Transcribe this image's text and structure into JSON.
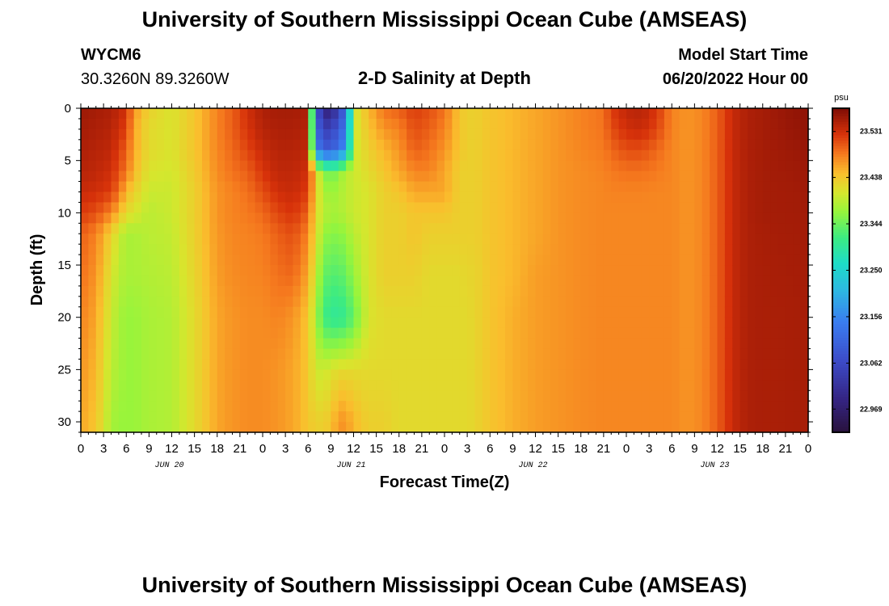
{
  "header": {
    "title": "University of Southern Mississippi Ocean Cube (AMSEAS)",
    "station": "WYCM6",
    "coords": "30.3260N  89.3260W",
    "plot_title": "2-D Salinity at Depth",
    "model_label": "Model Start Time",
    "model_time": "06/20/2022 Hour 00"
  },
  "footer": {
    "title": "University of Southern Mississippi Ocean Cube (AMSEAS)"
  },
  "chart_data": {
    "type": "heatmap",
    "title": "2-D Salinity at Depth",
    "xlabel": "Forecast Time(Z)",
    "ylabel": "Depth (ft)",
    "x_hours": [
      0,
      96
    ],
    "ylim": [
      0,
      31
    ],
    "x_tick_labels": [
      "0",
      "3",
      "6",
      "9",
      "12",
      "15",
      "18",
      "21",
      "0",
      "3",
      "6",
      "9",
      "12",
      "15",
      "18",
      "21",
      "0",
      "3",
      "6",
      "9",
      "12",
      "15",
      "18",
      "21",
      "0",
      "3",
      "6",
      "9",
      "12",
      "15",
      "18",
      "21",
      "0"
    ],
    "date_labels": [
      {
        "label": "JUN 20",
        "hour": 12
      },
      {
        "label": "JUN 21",
        "hour": 36
      },
      {
        "label": "JUN 22",
        "hour": 60
      },
      {
        "label": "JUN 23",
        "hour": 84
      }
    ],
    "y_ticks": [
      0,
      5,
      10,
      15,
      20,
      25,
      30
    ],
    "colorbar": {
      "unit": "psu",
      "min": 22.922,
      "max": 23.578,
      "ticks": [
        "23.531",
        "23.438",
        "23.344",
        "23.250",
        "23.156",
        "23.062",
        "22.969"
      ]
    },
    "depths": [
      0,
      2,
      4,
      6,
      8,
      10,
      12,
      16,
      20,
      25,
      30
    ],
    "times": [
      0,
      2,
      4,
      5,
      6,
      7,
      9,
      12,
      15,
      18,
      20,
      22,
      24,
      26,
      28,
      30,
      31,
      32,
      33,
      34,
      35,
      36,
      38,
      40,
      42,
      44,
      46,
      48,
      50,
      51,
      52,
      54,
      57,
      60,
      63,
      66,
      69,
      70,
      72,
      74,
      76,
      78,
      80,
      82,
      84,
      86,
      88,
      90,
      92,
      94,
      96
    ],
    "values": [
      [
        23.56,
        23.555,
        23.55,
        23.545,
        23.535,
        23.52,
        23.5,
        23.49,
        23.48,
        23.47,
        23.46
      ],
      [
        23.555,
        23.55,
        23.545,
        23.54,
        23.53,
        23.51,
        23.48,
        23.47,
        23.46,
        23.45,
        23.44
      ],
      [
        23.55,
        23.545,
        23.54,
        23.53,
        23.52,
        23.48,
        23.43,
        23.41,
        23.4,
        23.39,
        23.38
      ],
      [
        23.54,
        23.53,
        23.52,
        23.51,
        23.49,
        23.45,
        23.4,
        23.39,
        23.38,
        23.38,
        23.37
      ],
      [
        23.53,
        23.52,
        23.5,
        23.49,
        23.45,
        23.42,
        23.38,
        23.38,
        23.37,
        23.37,
        23.37
      ],
      [
        23.47,
        23.46,
        23.46,
        23.45,
        23.43,
        23.41,
        23.38,
        23.38,
        23.37,
        23.37,
        23.37
      ],
      [
        23.43,
        23.42,
        23.42,
        23.41,
        23.4,
        23.39,
        23.39,
        23.385,
        23.38,
        23.38,
        23.38
      ],
      [
        23.41,
        23.41,
        23.41,
        23.405,
        23.4,
        23.4,
        23.395,
        23.39,
        23.385,
        23.385,
        23.385
      ],
      [
        23.44,
        23.44,
        23.44,
        23.435,
        23.43,
        23.43,
        23.43,
        23.425,
        23.42,
        23.42,
        23.42
      ],
      [
        23.48,
        23.48,
        23.478,
        23.475,
        23.47,
        23.47,
        23.468,
        23.465,
        23.46,
        23.46,
        23.46
      ],
      [
        23.5,
        23.5,
        23.495,
        23.49,
        23.48,
        23.48,
        23.478,
        23.475,
        23.47,
        23.47,
        23.47
      ],
      [
        23.53,
        23.525,
        23.515,
        23.5,
        23.49,
        23.485,
        23.48,
        23.478,
        23.475,
        23.475,
        23.475
      ],
      [
        23.55,
        23.545,
        23.535,
        23.525,
        23.51,
        23.495,
        23.485,
        23.48,
        23.475,
        23.475,
        23.475
      ],
      [
        23.555,
        23.55,
        23.545,
        23.54,
        23.53,
        23.515,
        23.5,
        23.49,
        23.48,
        23.47,
        23.47
      ],
      [
        23.555,
        23.55,
        23.545,
        23.54,
        23.535,
        23.525,
        23.51,
        23.495,
        23.47,
        23.46,
        23.46
      ],
      [
        23.55,
        23.545,
        23.54,
        23.53,
        23.52,
        23.5,
        23.48,
        23.46,
        23.44,
        23.44,
        23.44
      ],
      [
        23.1,
        23.12,
        23.15,
        23.43,
        23.43,
        23.42,
        23.42,
        23.4,
        23.38,
        23.4,
        23.43
      ],
      [
        23.0,
        23.05,
        23.1,
        23.36,
        23.38,
        23.39,
        23.37,
        23.34,
        23.32,
        23.4,
        23.43
      ],
      [
        22.96,
        23.04,
        23.09,
        23.34,
        23.37,
        23.38,
        23.36,
        23.33,
        23.3,
        23.41,
        23.44
      ],
      [
        23.06,
        23.1,
        23.13,
        23.36,
        23.38,
        23.38,
        23.36,
        23.33,
        23.3,
        23.42,
        23.47
      ],
      [
        23.1,
        23.13,
        23.16,
        23.39,
        23.39,
        23.39,
        23.37,
        23.34,
        23.31,
        23.42,
        23.47
      ],
      [
        23.4,
        23.4,
        23.4,
        23.4,
        23.4,
        23.4,
        23.39,
        23.37,
        23.34,
        23.42,
        23.45
      ],
      [
        23.45,
        23.44,
        23.43,
        23.42,
        23.41,
        23.41,
        23.41,
        23.41,
        23.41,
        23.42,
        23.43
      ],
      [
        23.49,
        23.47,
        23.45,
        23.44,
        23.43,
        23.43,
        23.43,
        23.43,
        23.42,
        23.42,
        23.43
      ],
      [
        23.5,
        23.48,
        23.47,
        23.46,
        23.44,
        23.43,
        23.43,
        23.43,
        23.42,
        23.42,
        23.42
      ],
      [
        23.52,
        23.51,
        23.5,
        23.48,
        23.46,
        23.44,
        23.44,
        23.43,
        23.42,
        23.42,
        23.42
      ],
      [
        23.51,
        23.5,
        23.49,
        23.48,
        23.46,
        23.44,
        23.43,
        23.42,
        23.42,
        23.42,
        23.42
      ],
      [
        23.49,
        23.48,
        23.47,
        23.46,
        23.46,
        23.44,
        23.43,
        23.42,
        23.42,
        23.42,
        23.42
      ],
      [
        23.44,
        23.44,
        23.44,
        23.43,
        23.43,
        23.43,
        23.43,
        23.42,
        23.42,
        23.42,
        23.42
      ],
      [
        23.43,
        23.43,
        23.43,
        23.43,
        23.43,
        23.43,
        23.43,
        23.425,
        23.42,
        23.42,
        23.42
      ],
      [
        23.43,
        23.43,
        23.43,
        23.43,
        23.43,
        23.43,
        23.43,
        23.425,
        23.425,
        23.425,
        23.425
      ],
      [
        23.44,
        23.44,
        23.44,
        23.44,
        23.44,
        23.44,
        23.44,
        23.44,
        23.44,
        23.44,
        23.44
      ],
      [
        23.45,
        23.45,
        23.45,
        23.45,
        23.45,
        23.45,
        23.45,
        23.45,
        23.455,
        23.455,
        23.455
      ],
      [
        23.46,
        23.46,
        23.46,
        23.46,
        23.46,
        23.46,
        23.46,
        23.465,
        23.465,
        23.465,
        23.465
      ],
      [
        23.47,
        23.47,
        23.47,
        23.47,
        23.47,
        23.47,
        23.47,
        23.47,
        23.47,
        23.47,
        23.47
      ],
      [
        23.48,
        23.48,
        23.478,
        23.475,
        23.475,
        23.475,
        23.475,
        23.475,
        23.475,
        23.475,
        23.475
      ],
      [
        23.49,
        23.488,
        23.485,
        23.48,
        23.478,
        23.478,
        23.478,
        23.478,
        23.478,
        23.478,
        23.478
      ],
      [
        23.52,
        23.51,
        23.495,
        23.485,
        23.48,
        23.478,
        23.478,
        23.478,
        23.478,
        23.478,
        23.478
      ],
      [
        23.54,
        23.53,
        23.51,
        23.49,
        23.48,
        23.478,
        23.478,
        23.478,
        23.478,
        23.478,
        23.478
      ],
      [
        23.545,
        23.535,
        23.51,
        23.49,
        23.48,
        23.478,
        23.478,
        23.478,
        23.478,
        23.478,
        23.478
      ],
      [
        23.525,
        23.515,
        23.495,
        23.485,
        23.478,
        23.478,
        23.478,
        23.478,
        23.478,
        23.478,
        23.478
      ],
      [
        23.48,
        23.48,
        23.478,
        23.478,
        23.478,
        23.478,
        23.478,
        23.478,
        23.478,
        23.478,
        23.478
      ],
      [
        23.47,
        23.47,
        23.47,
        23.47,
        23.47,
        23.47,
        23.47,
        23.47,
        23.47,
        23.47,
        23.47
      ],
      [
        23.478,
        23.478,
        23.478,
        23.478,
        23.478,
        23.478,
        23.478,
        23.478,
        23.478,
        23.478,
        23.478
      ],
      [
        23.5,
        23.5,
        23.5,
        23.5,
        23.5,
        23.5,
        23.5,
        23.5,
        23.5,
        23.5,
        23.5
      ],
      [
        23.535,
        23.535,
        23.535,
        23.535,
        23.535,
        23.535,
        23.535,
        23.535,
        23.535,
        23.535,
        23.535
      ],
      [
        23.55,
        23.55,
        23.55,
        23.55,
        23.55,
        23.55,
        23.55,
        23.55,
        23.55,
        23.55,
        23.55
      ],
      [
        23.555,
        23.555,
        23.555,
        23.555,
        23.555,
        23.555,
        23.553,
        23.552,
        23.552,
        23.552,
        23.552
      ],
      [
        23.56,
        23.558,
        23.557,
        23.556,
        23.555,
        23.555,
        23.554,
        23.553,
        23.552,
        23.552,
        23.552
      ],
      [
        23.565,
        23.563,
        23.56,
        23.558,
        23.556,
        23.556,
        23.555,
        23.554,
        23.553,
        23.553,
        23.553
      ],
      [
        23.568,
        23.565,
        23.562,
        23.56,
        23.558,
        23.557,
        23.556,
        23.555,
        23.554,
        23.554,
        23.554
      ]
    ]
  }
}
